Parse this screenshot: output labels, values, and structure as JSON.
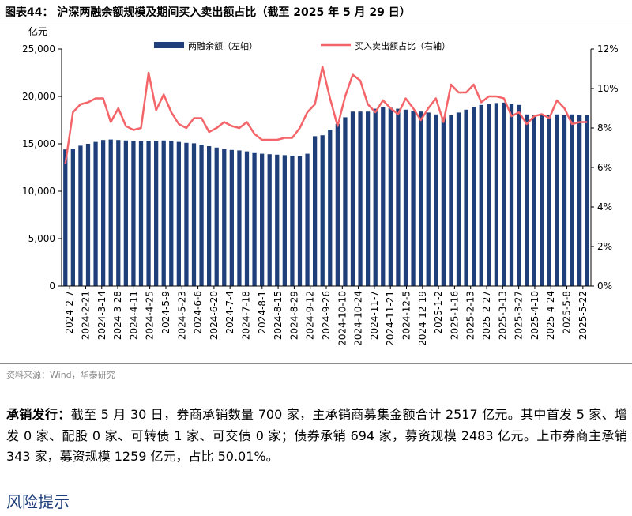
{
  "figure": {
    "title": "图表44：  沪深两融余额规模及期间买入卖出额占比（截至 2025 年 5 月 29 日）",
    "source": "资料来源：Wind，华泰研究"
  },
  "chart_data": {
    "type": "bar+line",
    "left_axis": {
      "unit_label": "亿元",
      "ylim": [
        0,
        25000
      ],
      "ticks": [
        "0",
        "5,000",
        "10,000",
        "15,000",
        "20,000",
        "25,000"
      ]
    },
    "right_axis": {
      "ylim": [
        0,
        12
      ],
      "ticks": [
        "0%",
        "2%",
        "4%",
        "6%",
        "8%",
        "10%",
        "12%"
      ]
    },
    "x_tick_labels": [
      "2024-2-7",
      "2024-2-21",
      "2024-3-14",
      "2024-3-28",
      "2024-4-11",
      "2024-4-25",
      "2024-5-9",
      "2024-5-23",
      "2024-6-6",
      "2024-6-20",
      "2024-7-4",
      "2024-7-18",
      "2024-8-1",
      "2024-8-15",
      "2024-8-29",
      "2024-9-12",
      "2024-9-26",
      "2024-10-10",
      "2024-10-24",
      "2024-11-7",
      "2024-11-21",
      "2024-12-5",
      "2024-12-19",
      "2025-1-2",
      "2025-1-16",
      "2025-2-13",
      "2025-2-27",
      "2025-3-13",
      "2025-3-27",
      "2025-4-10",
      "2025-4-24",
      "2025-5-8",
      "2025-5-22"
    ],
    "series": [
      {
        "name": "两融余额（左轴）",
        "kind": "bar",
        "axis": "left",
        "color": "#1f3f7a",
        "values": [
          14400,
          14500,
          14800,
          15000,
          15200,
          15400,
          15450,
          15400,
          15350,
          15300,
          15250,
          15300,
          15300,
          15350,
          15300,
          15200,
          15100,
          15050,
          14900,
          14750,
          14600,
          14450,
          14350,
          14300,
          14200,
          14100,
          13950,
          13900,
          13850,
          13800,
          13750,
          13700,
          13950,
          15800,
          15900,
          16500,
          17100,
          17800,
          18400,
          18400,
          18400,
          18700,
          18900,
          18800,
          18700,
          18600,
          18500,
          18400,
          18300,
          18100,
          17800,
          18000,
          18300,
          18600,
          18900,
          19100,
          19200,
          19300,
          19350,
          19200,
          19100,
          18100,
          18000,
          18100,
          18000,
          18100,
          18000,
          18100,
          18050,
          18000
        ]
      },
      {
        "name": "买入卖出额占比（右轴）",
        "kind": "line",
        "axis": "right",
        "color": "#f4656a",
        "values": [
          6.2,
          8.8,
          9.2,
          9.3,
          9.5,
          9.5,
          8.3,
          9.0,
          8.1,
          7.9,
          8.0,
          10.8,
          8.9,
          9.7,
          8.8,
          8.2,
          8.0,
          8.5,
          8.5,
          7.8,
          8.0,
          8.3,
          8.1,
          8.0,
          8.3,
          7.7,
          7.4,
          7.4,
          7.4,
          7.5,
          7.5,
          8.0,
          8.8,
          9.2,
          11.1,
          9.5,
          8.1,
          9.6,
          10.7,
          10.4,
          9.2,
          8.8,
          9.4,
          9.0,
          8.7,
          9.5,
          9.0,
          8.4,
          9.0,
          9.5,
          8.3,
          10.2,
          9.8,
          9.8,
          10.2,
          9.3,
          9.6,
          9.6,
          9.5,
          8.6,
          8.8,
          8.2,
          8.6,
          8.7,
          8.5,
          9.4,
          9.0,
          8.2,
          8.3,
          8.3
        ]
      }
    ]
  },
  "paragraph": {
    "heading": "承销发行：",
    "text": "截至 5 月 30 日，券商承销数量 700 家，主承销商募集金额合计 2517 亿元。其中首发 5 家、增发 0 家、配股 0 家、可转债 1 家、可交债 0 家；债券承销 694 家，募资规模 2483 亿元。上市券商主承销 343 家，募资规模 1259 亿元，占比 50.01%。"
  },
  "section": {
    "title": "风险提示"
  }
}
